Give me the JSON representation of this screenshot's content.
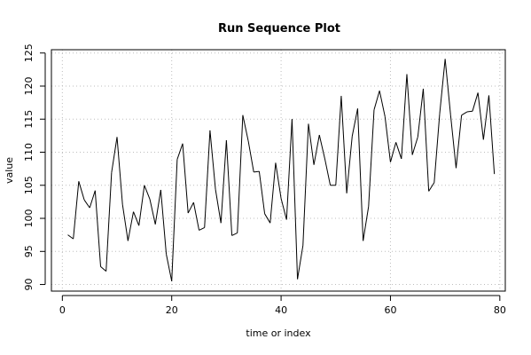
{
  "chart_data": {
    "type": "line",
    "title": "Run Sequence Plot",
    "xlabel": "time or index",
    "ylabel": "value",
    "xlim": [
      -2,
      81
    ],
    "ylim": [
      89,
      125.5
    ],
    "x_ticks": [
      0,
      20,
      40,
      60,
      80
    ],
    "y_ticks": [
      90,
      95,
      100,
      105,
      110,
      115,
      120,
      125
    ],
    "grid": true,
    "series": [
      {
        "x": [
          1,
          2,
          3,
          4,
          5,
          6,
          7,
          8,
          9,
          10,
          11,
          12,
          13,
          14,
          15,
          16,
          17,
          18,
          19,
          20,
          21,
          22,
          23,
          24,
          25,
          26,
          27,
          28,
          29,
          30,
          31,
          32,
          33,
          34,
          35,
          36,
          37,
          38,
          39,
          40,
          41,
          42,
          43,
          44,
          45,
          46,
          47,
          48,
          49,
          50,
          51,
          52,
          53,
          54,
          55,
          56,
          57,
          58,
          59,
          60,
          61,
          62,
          63,
          64,
          65,
          66,
          67,
          68,
          69,
          70,
          71,
          72,
          73,
          74,
          75,
          76,
          77,
          78,
          79
        ],
        "values": [
          97.5,
          96.9,
          105.6,
          102.8,
          101.6,
          104.2,
          92.7,
          92.0,
          106.9,
          112.3,
          102.1,
          96.6,
          101.0,
          98.9,
          105.0,
          102.9,
          99.1,
          104.3,
          94.6,
          90.5,
          108.9,
          111.3,
          100.8,
          102.4,
          98.2,
          98.6,
          113.3,
          104.4,
          99.3,
          111.8,
          97.4,
          97.8,
          115.6,
          111.7,
          107.0,
          107.1,
          100.7,
          99.3,
          108.4,
          103.0,
          99.8,
          115.0,
          90.8,
          95.9,
          114.3,
          108.1,
          112.6,
          109.0,
          105.0,
          105.0,
          118.5,
          103.8,
          112.4,
          116.6,
          96.6,
          101.8,
          116.4,
          119.3,
          115.4,
          108.5,
          111.5,
          109.0,
          121.8,
          109.6,
          112.3,
          119.6,
          104.1,
          105.4,
          115.8,
          124.1,
          115.6,
          107.6,
          115.6,
          116.1,
          116.2,
          119.0,
          111.9,
          118.6,
          106.7
        ]
      }
    ]
  }
}
